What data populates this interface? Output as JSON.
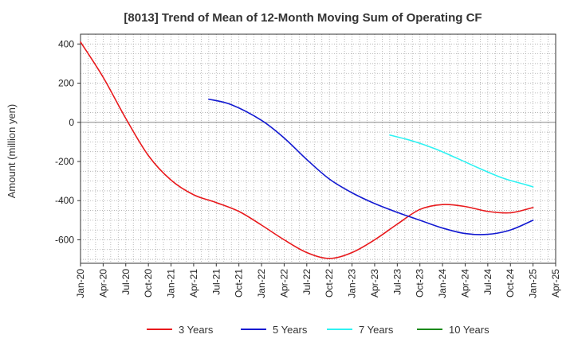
{
  "chart_data": {
    "type": "line",
    "title": "[8013]  Trend of Mean of 12-Month Moving Sum of Operating CF",
    "xlabel": "",
    "ylabel": "Amount (million yen)",
    "ylim": [
      -720,
      450
    ],
    "yticks": [
      400,
      200,
      0,
      -200,
      -400,
      -600
    ],
    "ytick_labels": [
      "400",
      "200",
      "0",
      "-200",
      "-400",
      "-600"
    ],
    "xlim_months": [
      0,
      63
    ],
    "xtick_labels": [
      "Jan-20",
      "Apr-20",
      "Jul-20",
      "Oct-20",
      "Jan-21",
      "Apr-21",
      "Jul-21",
      "Oct-21",
      "Jan-22",
      "Apr-22",
      "Jul-22",
      "Oct-22",
      "Jan-23",
      "Apr-23",
      "Jul-23",
      "Oct-23",
      "Jan-24",
      "Apr-24",
      "Jul-24",
      "Oct-24",
      "Jan-25",
      "Apr-25"
    ],
    "grid": true,
    "legend_position": "bottom",
    "series": [
      {
        "name": "3 Years",
        "color": "#e8191c",
        "points": [
          [
            0,
            410
          ],
          [
            3,
            230
          ],
          [
            6,
            20
          ],
          [
            9,
            -170
          ],
          [
            12,
            -295
          ],
          [
            15,
            -370
          ],
          [
            18,
            -410
          ],
          [
            21,
            -455
          ],
          [
            24,
            -525
          ],
          [
            27,
            -600
          ],
          [
            30,
            -665
          ],
          [
            33,
            -695
          ],
          [
            36,
            -665
          ],
          [
            39,
            -600
          ],
          [
            42,
            -520
          ],
          [
            45,
            -445
          ],
          [
            48,
            -420
          ],
          [
            51,
            -430
          ],
          [
            54,
            -455
          ],
          [
            57,
            -462
          ],
          [
            60,
            -435
          ]
        ]
      },
      {
        "name": "5 Years",
        "color": "#1219d1",
        "points": [
          [
            17,
            118
          ],
          [
            20,
            90
          ],
          [
            24,
            10
          ],
          [
            27,
            -80
          ],
          [
            30,
            -190
          ],
          [
            33,
            -290
          ],
          [
            36,
            -360
          ],
          [
            39,
            -415
          ],
          [
            42,
            -460
          ],
          [
            45,
            -500
          ],
          [
            48,
            -540
          ],
          [
            51,
            -568
          ],
          [
            54,
            -572
          ],
          [
            57,
            -550
          ],
          [
            60,
            -500
          ]
        ]
      },
      {
        "name": "7 Years",
        "color": "#2ef2f2",
        "points": [
          [
            41,
            -65
          ],
          [
            44,
            -95
          ],
          [
            47,
            -135
          ],
          [
            50,
            -185
          ],
          [
            53,
            -237
          ],
          [
            56,
            -285
          ],
          [
            59,
            -318
          ],
          [
            60,
            -330
          ]
        ]
      },
      {
        "name": "10 Years",
        "color": "#1a8a1a",
        "points": []
      }
    ]
  }
}
